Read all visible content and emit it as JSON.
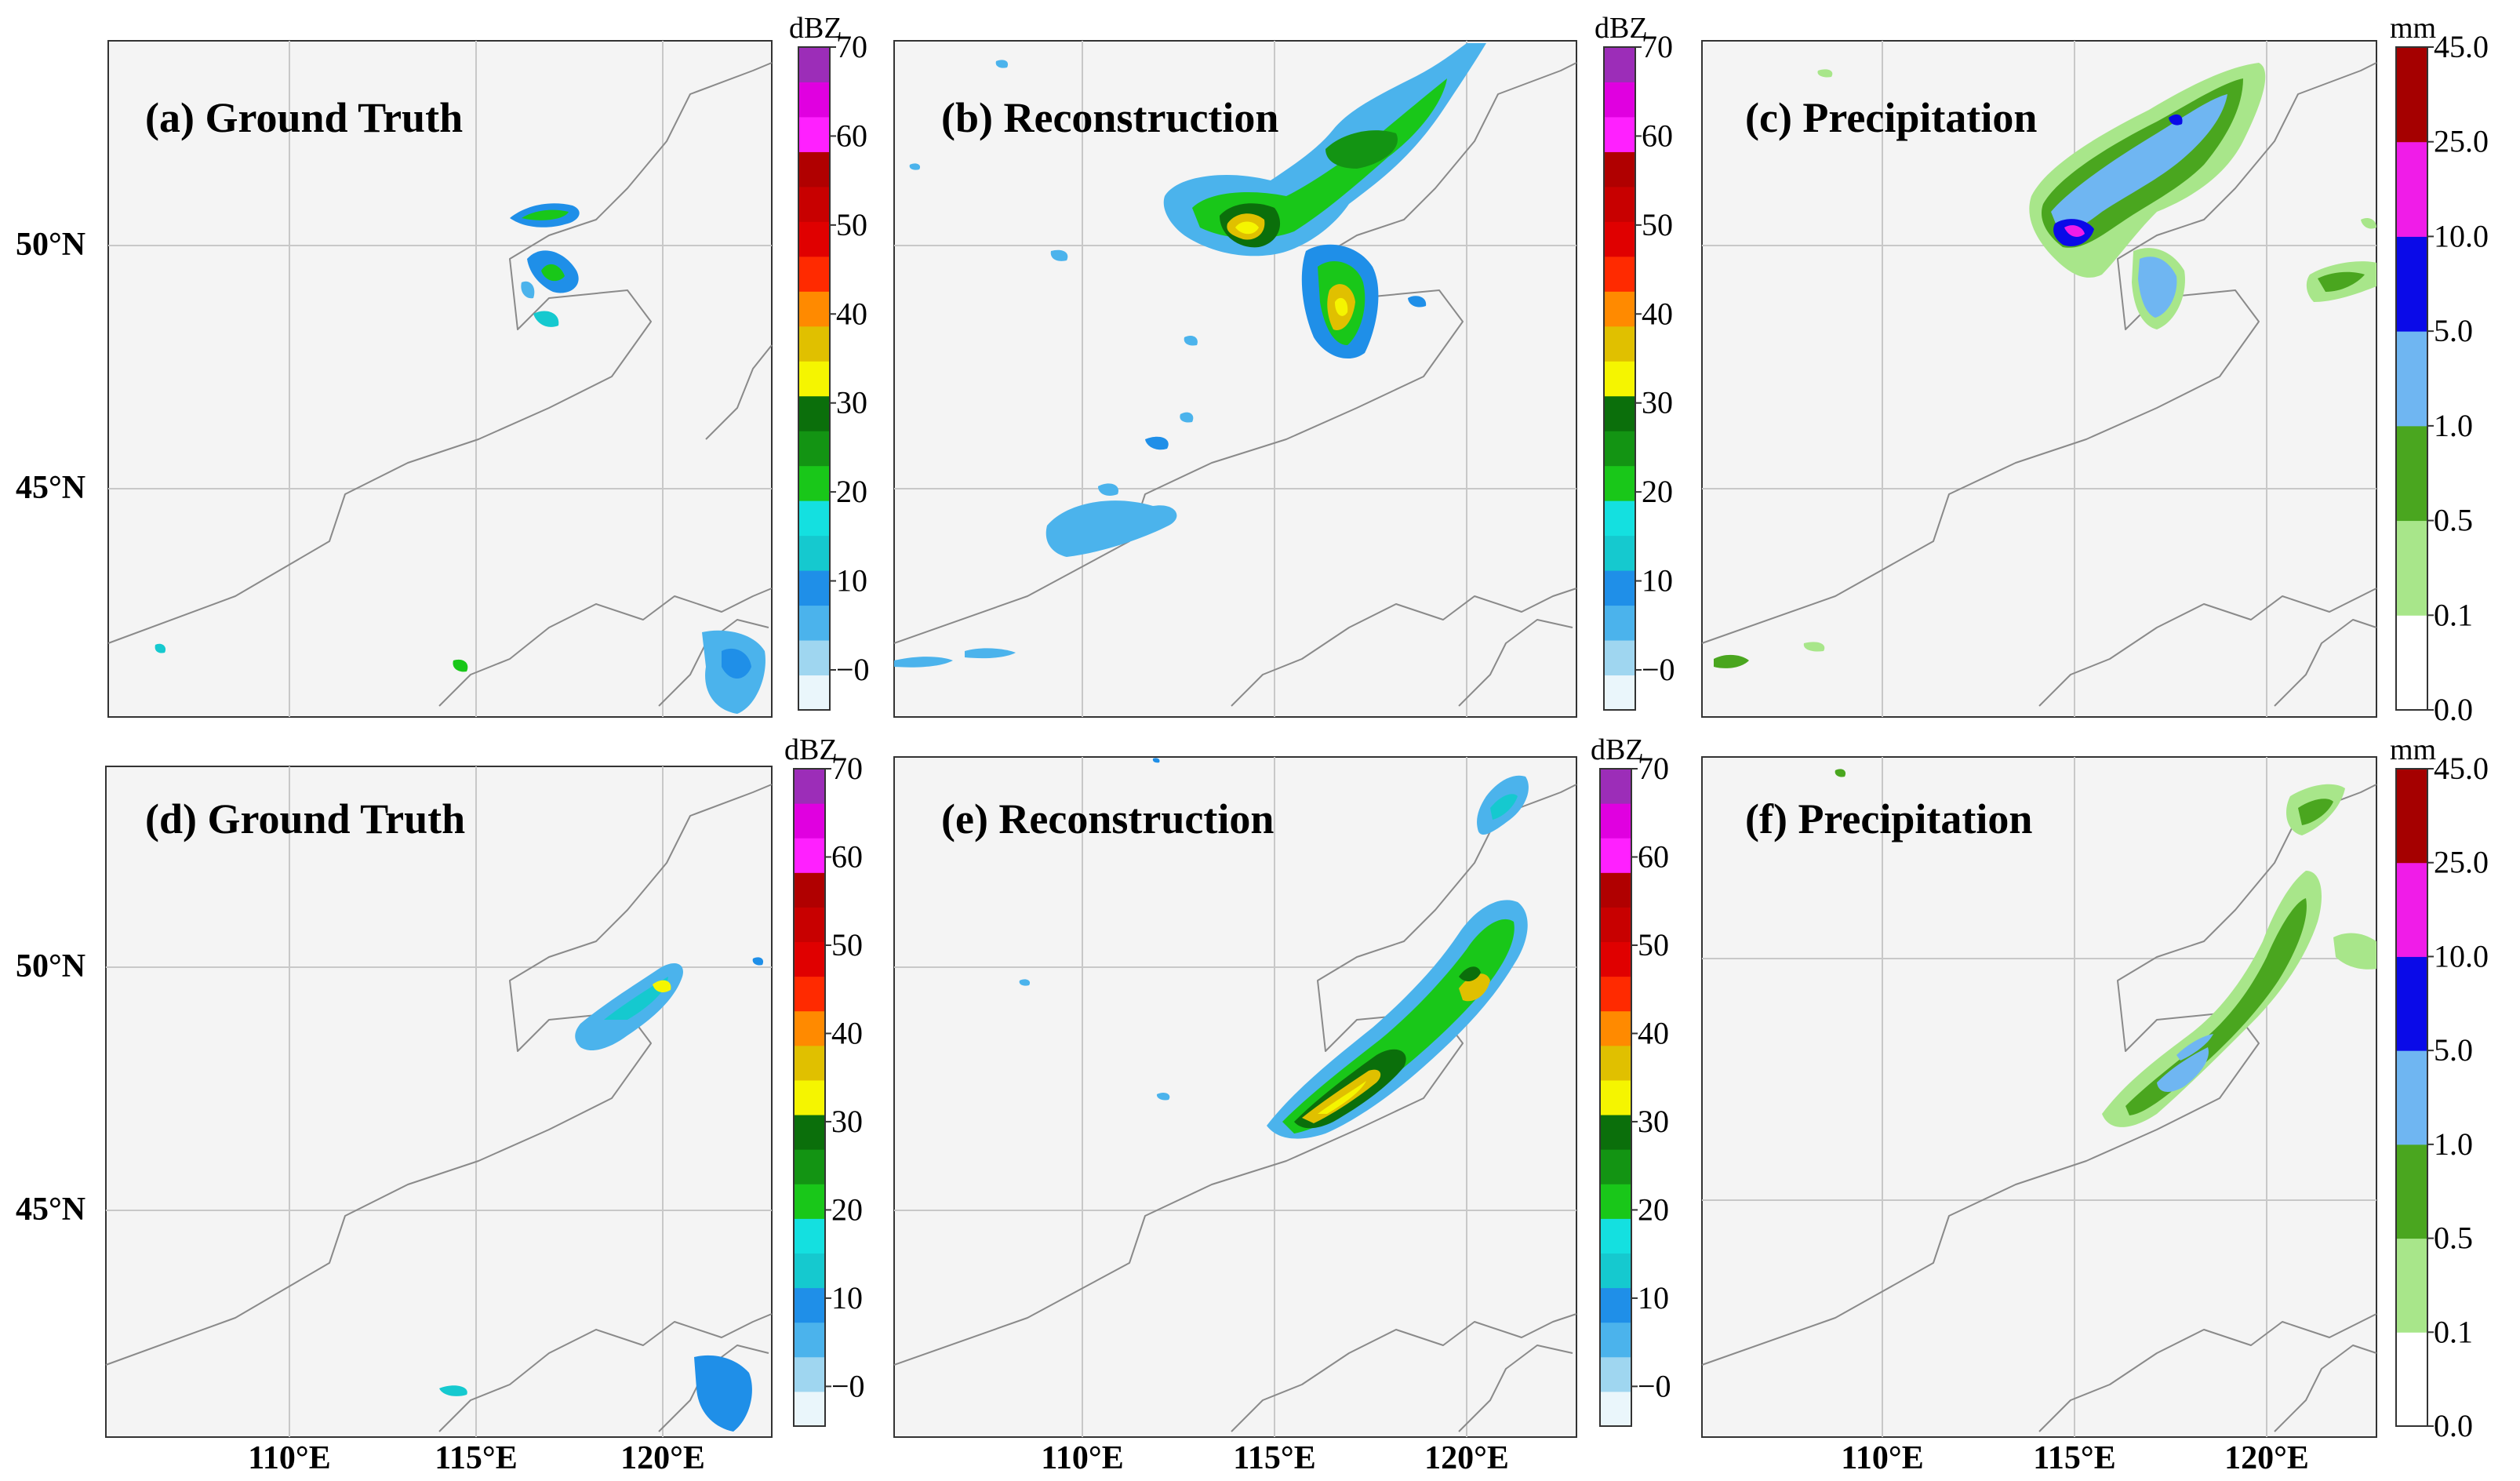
{
  "figure": {
    "panels": [
      {
        "id": "a",
        "title": "(a) Ground Truth",
        "colorbar": "dbz"
      },
      {
        "id": "b",
        "title": "(b) Reconstruction",
        "colorbar": "dbz"
      },
      {
        "id": "c",
        "title": "(c) Precipitation",
        "colorbar": "mm"
      },
      {
        "id": "d",
        "title": "(d) Ground Truth",
        "colorbar": "dbz"
      },
      {
        "id": "e",
        "title": "(e) Reconstruction",
        "colorbar": "dbz"
      },
      {
        "id": "f",
        "title": "(f) Precipitation",
        "colorbar": "mm"
      }
    ],
    "lat_labels": [
      "50°N",
      "45°N"
    ],
    "lon_labels": [
      "110°E",
      "115°E",
      "120°E"
    ],
    "colorbars": {
      "dbz": {
        "unit": "dBZ",
        "ticks": [
          "70",
          "60",
          "50",
          "40",
          "30",
          "20",
          "10",
          "−0"
        ],
        "colors": [
          "#eaf6fb",
          "#9fd6f0",
          "#4bb3ec",
          "#1f8fe8",
          "#15c9cf",
          "#14e0e0",
          "#19c719",
          "#139413",
          "#0b6f0b",
          "#f5f500",
          "#e0c000",
          "#ff8a00",
          "#ff2a00",
          "#e00000",
          "#c80000",
          "#b00000",
          "#ff20ff",
          "#e000e0",
          "#9c2db8"
        ]
      },
      "mm": {
        "unit": "mm",
        "ticks": [
          "45.0",
          "25.0",
          "10.0",
          "5.0",
          "1.0",
          "0.5",
          "0.1",
          "0.0"
        ],
        "colors": [
          "#ffffff",
          "#a8e68a",
          "#4aa61f",
          "#6fb6f2",
          "#0a0ae8",
          "#f01ce8",
          "#a50000"
        ]
      }
    },
    "colors": {
      "map_background": "#f4f4f4",
      "border": "#8a8a8a",
      "grid": "#c8c8c8"
    }
  }
}
